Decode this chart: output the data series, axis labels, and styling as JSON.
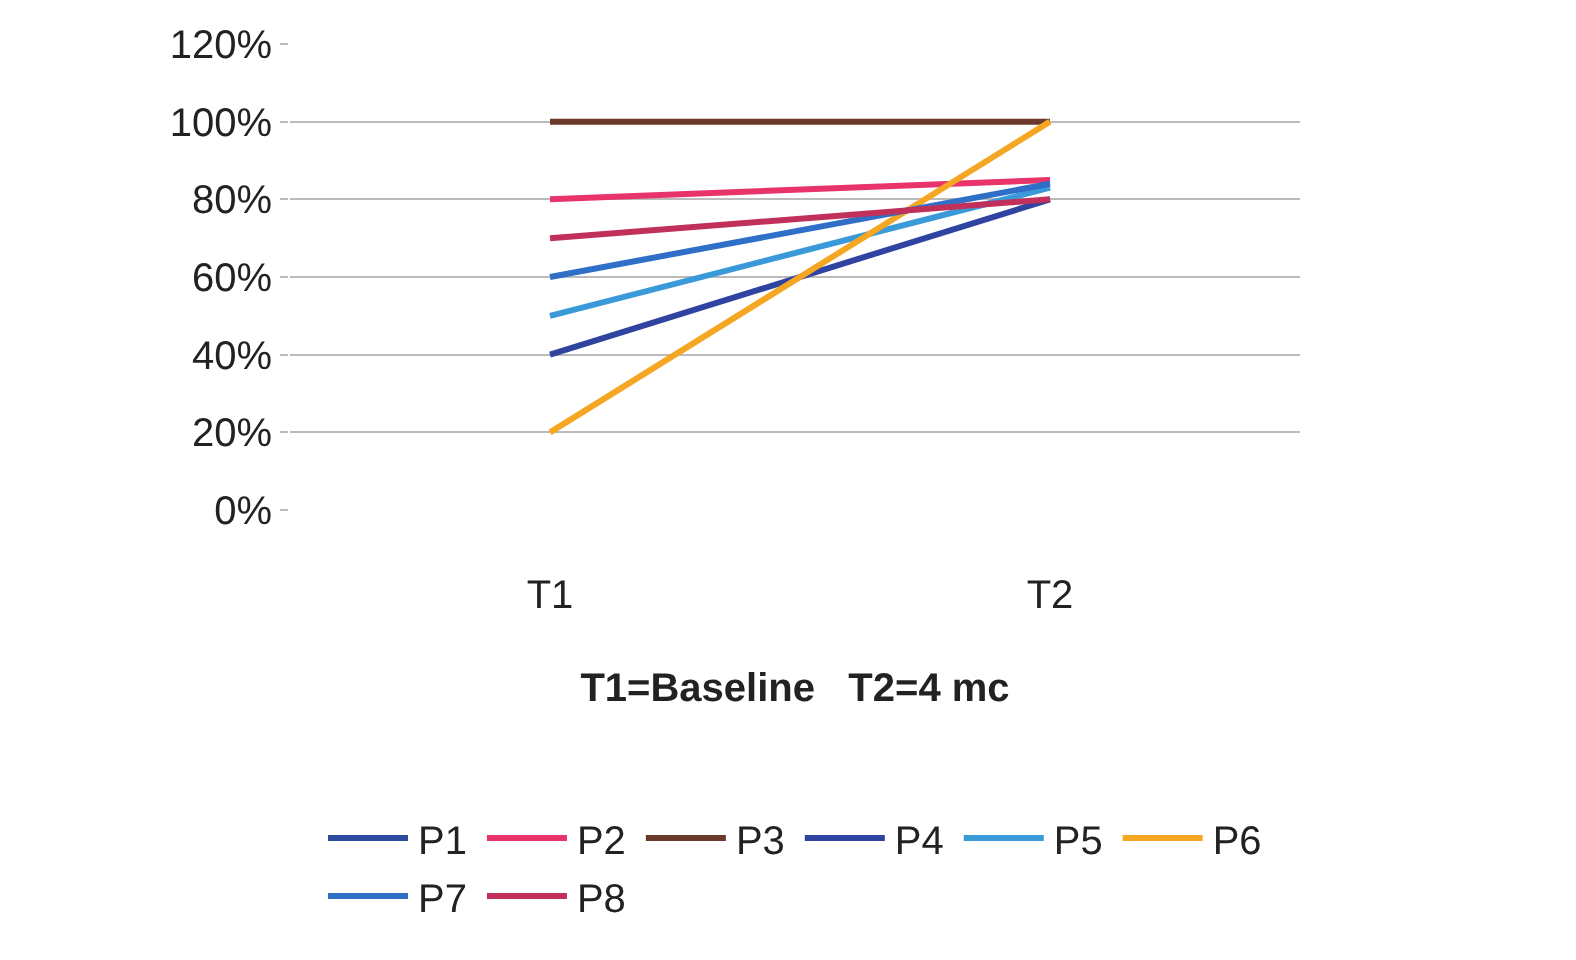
{
  "chart_data": {
    "type": "line",
    "xlabel": "T1=Baseline   T2=4 mc",
    "categories": [
      "T1",
      "T2"
    ],
    "series": [
      {
        "name": "P1",
        "color": "#2e4a9e",
        "values": [
          null,
          null
        ]
      },
      {
        "name": "P2",
        "color": "#e8336b",
        "values": [
          80,
          85
        ]
      },
      {
        "name": "P3",
        "color": "#6b3a2a",
        "values": [
          100,
          100
        ]
      },
      {
        "name": "P4",
        "color": "#2f44a0",
        "values": [
          40,
          80
        ]
      },
      {
        "name": "P5",
        "color": "#3a9ad9",
        "values": [
          50,
          83
        ]
      },
      {
        "name": "P6",
        "color": "#f5a623",
        "values": [
          20,
          100
        ]
      },
      {
        "name": "P7",
        "color": "#2f6fc8",
        "values": [
          60,
          84
        ]
      },
      {
        "name": "P8",
        "color": "#c0305a",
        "values": [
          70,
          80
        ]
      }
    ],
    "ylim": [
      0,
      120
    ],
    "yticks": [
      {
        "value": 0,
        "label": "0%"
      },
      {
        "value": 20,
        "label": "20%"
      },
      {
        "value": 40,
        "label": "40%"
      },
      {
        "value": 60,
        "label": "60%"
      },
      {
        "value": 80,
        "label": "80%"
      },
      {
        "value": 100,
        "label": "100%"
      },
      {
        "value": 120,
        "label": "120%"
      }
    ],
    "grid": "y",
    "legend": "bottom",
    "marker": "none",
    "line_style": "solid"
  }
}
